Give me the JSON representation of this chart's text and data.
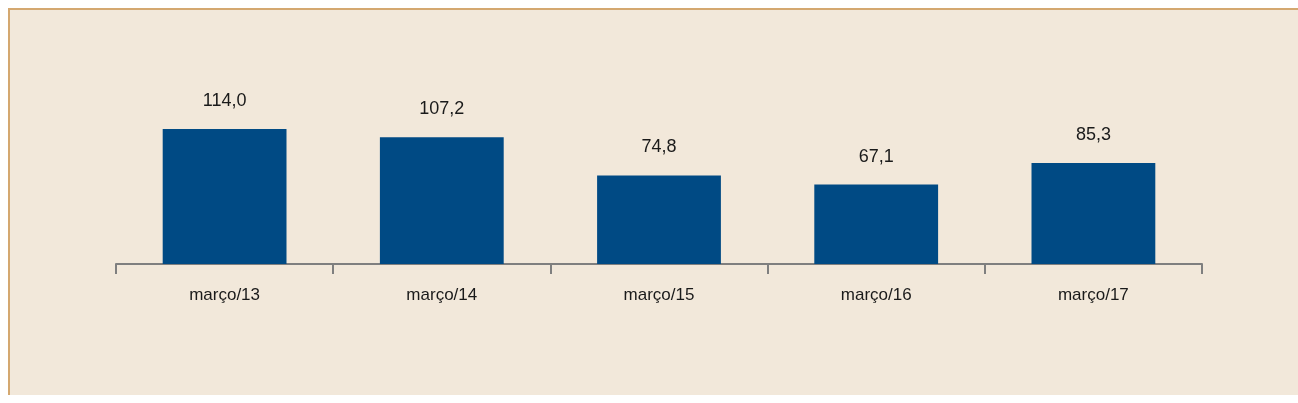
{
  "chart_data": {
    "type": "bar",
    "categories": [
      "março/13",
      "março/14",
      "março/15",
      "março/16",
      "março/17"
    ],
    "values": [
      114.0,
      107.2,
      74.8,
      67.1,
      85.3
    ],
    "value_labels": [
      "114,0",
      "107,2",
      "74,8",
      "67,1",
      "85,3"
    ],
    "color": "#004a84"
  }
}
